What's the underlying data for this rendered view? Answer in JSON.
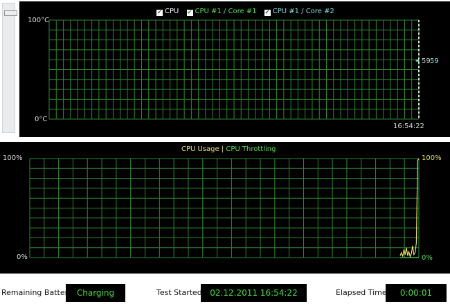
{
  "temperature_chart": {
    "legend": [
      {
        "label": "CPU",
        "color": "#ffffff",
        "checked": true
      },
      {
        "label": "CPU #1 / Core #1",
        "color": "#55e055",
        "checked": true
      },
      {
        "label": "CPU #1 / Core #2",
        "color": "#7fe0e0",
        "checked": true
      }
    ],
    "y_max_label": "100°C",
    "y_min_label": "0°C",
    "time_label": "16:54:22",
    "current_values": [
      "59",
      "59"
    ],
    "chart_data": {
      "type": "line",
      "ylim": [
        0,
        100
      ],
      "series": [
        {
          "name": "CPU #1 / Core #1",
          "values": [
            59
          ]
        },
        {
          "name": "CPU #1 / Core #2",
          "values": [
            59
          ]
        }
      ]
    }
  },
  "usage_chart": {
    "legend_usage": "CPU Usage",
    "separator": "|",
    "legend_throttling": "CPU Throttling",
    "colors": {
      "usage": "#e8e060",
      "throttling": "#55e055",
      "grid": "#2f8a2f"
    },
    "y_max_label": "100%",
    "y_min_label": "0%",
    "right_max_label": "100%",
    "right_min_label": "0%",
    "chart_data": {
      "type": "line",
      "ylim": [
        0,
        100
      ],
      "series": [
        {
          "name": "CPU Usage",
          "values": [
            2,
            5,
            1,
            8,
            3,
            10,
            2,
            6,
            1,
            4,
            12,
            3,
            5,
            15,
            98,
            100
          ]
        },
        {
          "name": "CPU Throttling",
          "values": [
            0,
            0,
            0,
            0,
            0,
            0,
            0,
            0,
            0,
            0,
            0,
            0,
            0,
            0,
            0,
            0
          ]
        }
      ]
    }
  },
  "status": {
    "battery_label": "Remaining Battery:",
    "battery_value": "Charging",
    "started_label": "Test Started:",
    "started_value": "02.12.2011 16:54:22",
    "elapsed_label": "Elapsed Time:",
    "elapsed_value": "0:00:01"
  }
}
